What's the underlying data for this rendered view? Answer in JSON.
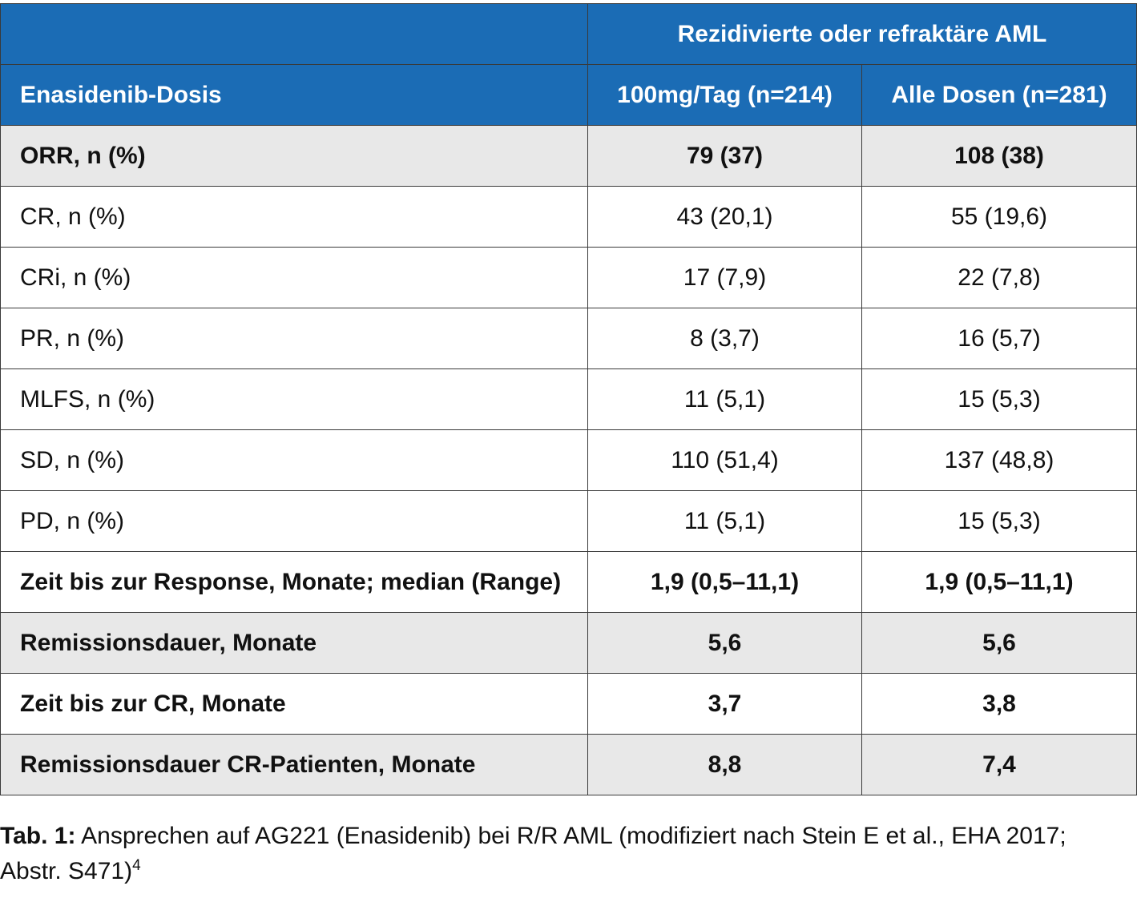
{
  "table": {
    "header_top": {
      "span_label": "Rezidivierte oder refraktäre AML"
    },
    "header_cols": {
      "label": "Enasidenib-Dosis",
      "col1": "100mg/Tag (n=214)",
      "col2": "Alle Dosen (n=281)"
    },
    "header_color": "#1b6cb5",
    "rows": [
      {
        "label": "ORR, n (%)",
        "v1": "79 (37)",
        "v2": "108 (38)",
        "bold": true,
        "shaded": true
      },
      {
        "label": "CR, n (%)",
        "v1": "43 (20,1)",
        "v2": "55 (19,6)",
        "bold": false,
        "shaded": false
      },
      {
        "label": "CRi, n (%)",
        "v1": "17 (7,9)",
        "v2": "22 (7,8)",
        "bold": false,
        "shaded": false
      },
      {
        "label": "PR, n (%)",
        "v1": "8 (3,7)",
        "v2": "16 (5,7)",
        "bold": false,
        "shaded": false
      },
      {
        "label": "MLFS, n (%)",
        "v1": "11 (5,1)",
        "v2": "15 (5,3)",
        "bold": false,
        "shaded": false
      },
      {
        "label": "SD, n (%)",
        "v1": "110 (51,4)",
        "v2": "137 (48,8)",
        "bold": false,
        "shaded": false
      },
      {
        "label": "PD, n (%)",
        "v1": "11 (5,1)",
        "v2": "15 (5,3)",
        "bold": false,
        "shaded": false
      },
      {
        "label": "Zeit bis zur Response, Monate; median (Range)",
        "v1": "1,9 (0,5–11,1)",
        "v2": "1,9 (0,5–11,1)",
        "bold": true,
        "shaded": false
      },
      {
        "label": "Remissionsdauer, Monate",
        "v1": "5,6",
        "v2": "5,6",
        "bold": true,
        "shaded": true
      },
      {
        "label": "Zeit bis zur CR, Monate",
        "v1": "3,7",
        "v2": "3,8",
        "bold": true,
        "shaded": false
      },
      {
        "label": "Remissionsdauer CR-Patienten, Monate",
        "v1": "8,8",
        "v2": "7,4",
        "bold": true,
        "shaded": true
      }
    ]
  },
  "caption": {
    "prefix": "Tab. 1:",
    "text": " Ansprechen auf AG221 (Enasidenib) bei R/R AML (modifiziert nach Stein E et al., EHA 2017; Abstr. S471)",
    "footnote": "4"
  }
}
